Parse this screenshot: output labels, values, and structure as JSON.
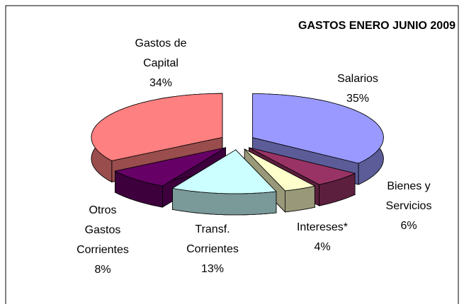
{
  "chart_data": {
    "type": "pie",
    "title": "GASTOS ENERO JUNIO 2009",
    "categories": [
      "Salarios",
      "Bienes y Servicios",
      "Intereses*",
      "Transf. Corrientes",
      "Otros Gastos Corrientes",
      "Gastos de Capital"
    ],
    "values": [
      35,
      6,
      4,
      13,
      8,
      34
    ],
    "value_labels": [
      "35%",
      "6%",
      "4%",
      "13%",
      "8%",
      "34%"
    ],
    "colors": [
      "#9999ff",
      "#993366",
      "#ffffcc",
      "#ccffff",
      "#660066",
      "#ff8080"
    ]
  }
}
